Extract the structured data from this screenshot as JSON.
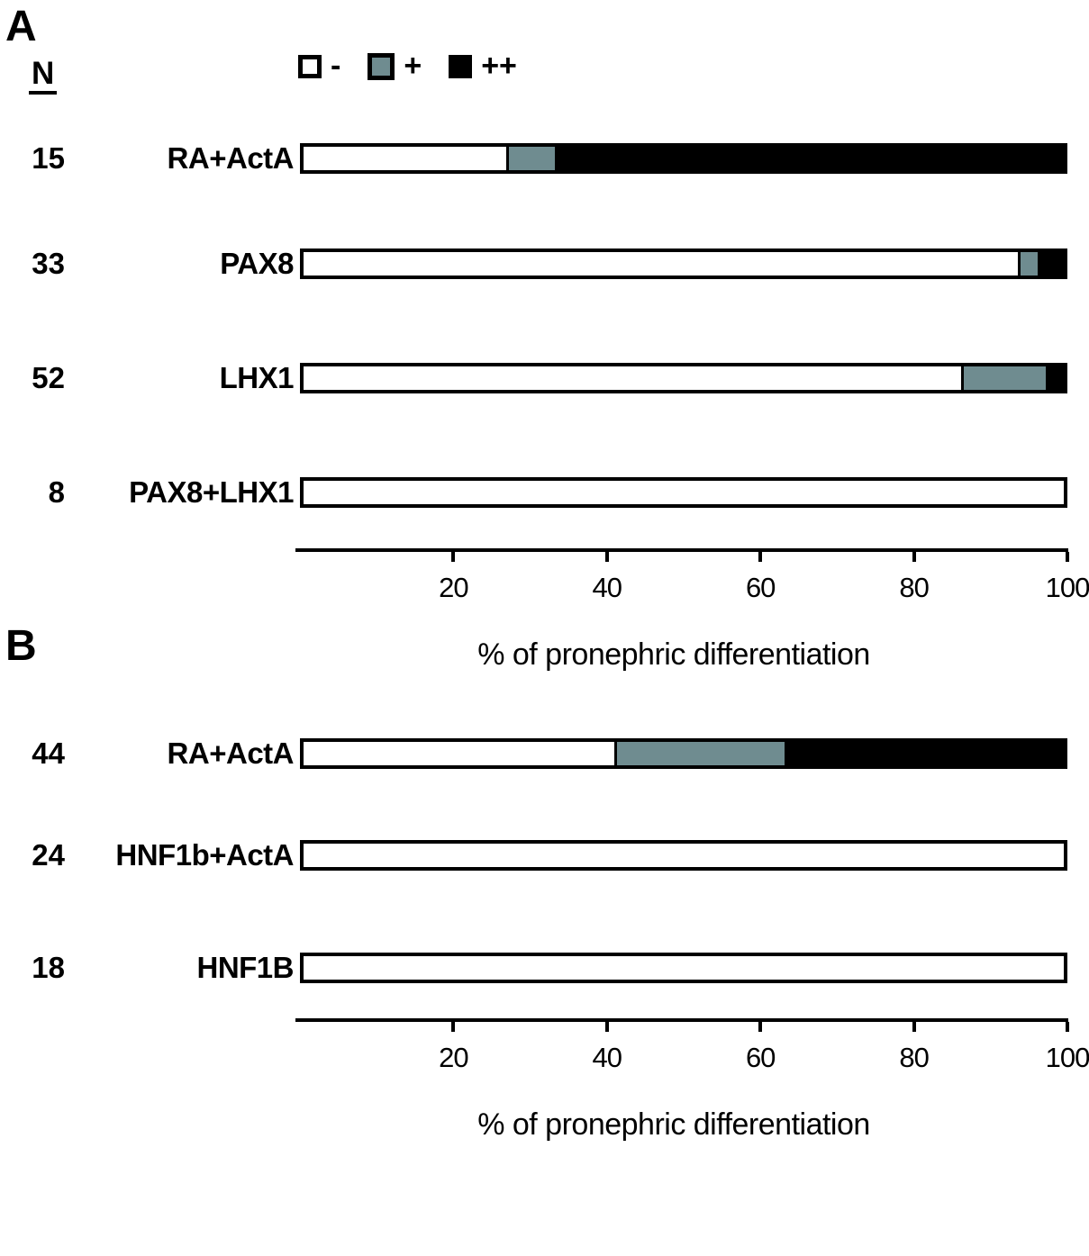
{
  "figure": {
    "background": "#ffffff"
  },
  "colors": {
    "minus": "#ffffff",
    "plus": "#6f8c90",
    "plusplus": "#000000",
    "outline": "#000000"
  },
  "legend": {
    "position": "top",
    "items": [
      {
        "key": "minus",
        "label": "-",
        "color": "#ffffff"
      },
      {
        "key": "plus",
        "label": "+",
        "color": "#6f8c90"
      },
      {
        "key": "plusplus",
        "label": "++",
        "color": "#000000"
      }
    ]
  },
  "chart_data": [
    {
      "panel": "A",
      "type": "bar",
      "stacked": true,
      "orientation": "horizontal",
      "n_header": "N",
      "categories": [
        "RA+ActA",
        "PAX8",
        "LHX1",
        "PAX8+LHX1"
      ],
      "n_values": [
        15,
        33,
        52,
        8
      ],
      "series": [
        {
          "key": "minus",
          "name": "-",
          "color": "#ffffff",
          "values": [
            26.7,
            93.9,
            86.5,
            100
          ]
        },
        {
          "key": "plus",
          "name": "+",
          "color": "#6f8c90",
          "values": [
            6.7,
            3.0,
            11.5,
            0
          ]
        },
        {
          "key": "plusplus",
          "name": "++",
          "color": "#000000",
          "values": [
            66.6,
            3.1,
            2.0,
            0
          ]
        }
      ],
      "xlabel": "% of pronephric differentiation",
      "xlim": [
        0,
        100
      ],
      "xticks": [
        20,
        40,
        60,
        80,
        100
      ],
      "grid": false,
      "legend_position": "top"
    },
    {
      "panel": "B",
      "type": "bar",
      "stacked": true,
      "orientation": "horizontal",
      "categories": [
        "RA+ActA",
        "HNF1b+ActA",
        "HNF1B"
      ],
      "n_values": [
        44,
        24,
        18
      ],
      "series": [
        {
          "key": "minus",
          "name": "-",
          "color": "#ffffff",
          "values": [
            40.9,
            100,
            100
          ]
        },
        {
          "key": "plus",
          "name": "+",
          "color": "#6f8c90",
          "values": [
            22.7,
            0,
            0
          ]
        },
        {
          "key": "plusplus",
          "name": "++",
          "color": "#000000",
          "values": [
            36.4,
            0,
            0
          ]
        }
      ],
      "xlabel": "% of pronephric differentiation",
      "xlim": [
        0,
        100
      ],
      "xticks": [
        20,
        40,
        60,
        80,
        100
      ],
      "grid": false,
      "legend_position": "none"
    }
  ]
}
